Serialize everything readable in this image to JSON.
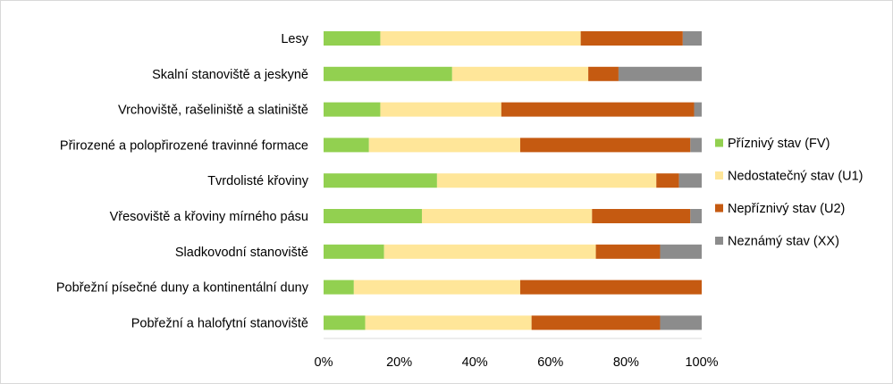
{
  "chart_data": {
    "type": "bar",
    "orientation": "horizontal",
    "stacked": "percent",
    "categories": [
      "Lesy",
      "Skalní stanoviště a jeskyně",
      "Vrchoviště, rašeliniště a slatiniště",
      "Přirozené a polopřirozené travinné formace",
      "Tvrdolisté křoviny",
      "Vřesoviště a křoviny mírného pásu",
      "Sladkovodní stanoviště",
      "Pobřežní písečné duny a kontinentální duny",
      "Pobřežní a halofytní stanoviště"
    ],
    "series": [
      {
        "name": "Příznivý stav (FV)",
        "color": "#92d050",
        "values": [
          15,
          34,
          15,
          12,
          30,
          26,
          16,
          8,
          11
        ]
      },
      {
        "name": "Nedostatečný stav (U1)",
        "color": "#ffe699",
        "values": [
          53,
          36,
          32,
          40,
          58,
          45,
          56,
          44,
          44
        ]
      },
      {
        "name": "Nepříznivý stav (U2)",
        "color": "#c55a11",
        "values": [
          27,
          8,
          51,
          45,
          6,
          26,
          17,
          48,
          34
        ]
      },
      {
        "name": "Neznámý stav (XX)",
        "color": "#8c8c8c",
        "values": [
          5,
          22,
          2,
          3,
          6,
          3,
          11,
          0,
          11
        ]
      }
    ],
    "x_ticks": [
      "0%",
      "20%",
      "40%",
      "60%",
      "80%",
      "100%"
    ],
    "xlim": [
      0,
      100
    ],
    "grid": false,
    "legend_position": "right"
  }
}
